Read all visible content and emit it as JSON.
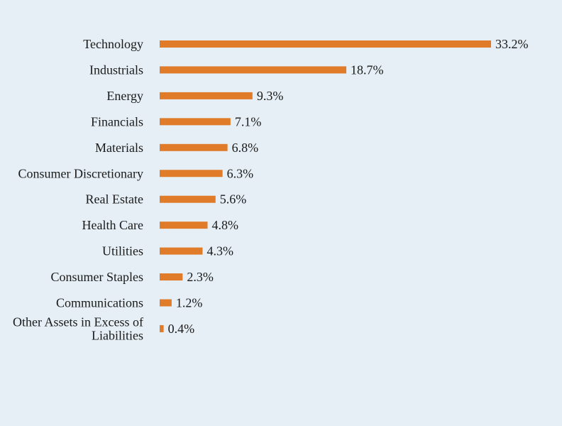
{
  "chart_data": {
    "type": "bar",
    "orientation": "horizontal",
    "categories": [
      "Technology",
      "Industrials",
      "Energy",
      "Financials",
      "Materials",
      "Consumer Discretionary",
      "Real Estate",
      "Health Care",
      "Utilities",
      "Consumer Staples",
      "Communications",
      [
        "Other Assets in Excess of",
        "Liabilities"
      ]
    ],
    "values": [
      33.2,
      18.7,
      9.3,
      7.1,
      6.8,
      6.3,
      5.6,
      4.8,
      4.3,
      2.3,
      1.2,
      0.4
    ],
    "value_labels": [
      "33.2%",
      "18.7%",
      "9.3%",
      "7.1%",
      "6.8%",
      "6.3%",
      "5.6%",
      "4.8%",
      "4.3%",
      "2.3%",
      "1.2%",
      "0.4%"
    ],
    "title": "",
    "xlabel": "",
    "ylabel": "",
    "xlim": [
      0,
      33.2
    ],
    "grid": false,
    "legend": "none",
    "colors": {
      "bar": "#e07b2a",
      "background": "#e5eff5",
      "text": "#1a1a1a"
    }
  }
}
